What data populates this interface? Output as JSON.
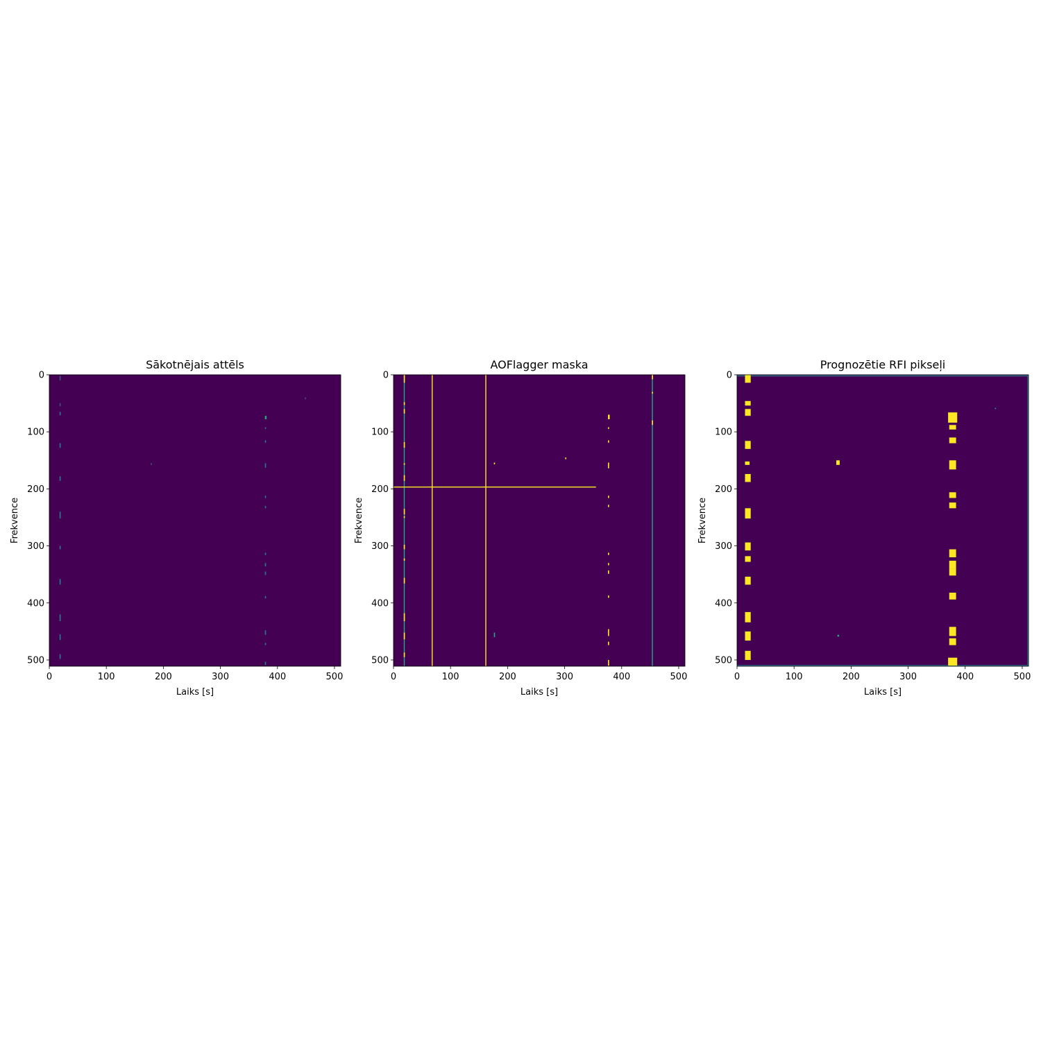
{
  "colors": {
    "background": "#440154",
    "low": "#2a788e",
    "mid": "#22a884",
    "high": "#fde725"
  },
  "chart_data": [
    {
      "type": "heatmap",
      "title": "Sākotnējais attēls",
      "xlabel": "Laiks [s]",
      "ylabel": "Frekvence",
      "xlim": [
        0,
        511
      ],
      "ylim": [
        511,
        0
      ],
      "xticks": [
        "0",
        "100",
        "200",
        "300",
        "400",
        "500"
      ],
      "yticks": [
        "0",
        "100",
        "200",
        "300",
        "400",
        "500"
      ],
      "grid": false,
      "vlines": [],
      "hlines": [],
      "blobs": [
        {
          "x": 18,
          "y": 2,
          "w": 2,
          "h": 8,
          "v": 0.25
        },
        {
          "x": 18,
          "y": 50,
          "w": 2,
          "h": 5,
          "v": 0.25
        },
        {
          "x": 18,
          "y": 65,
          "w": 2,
          "h": 6,
          "v": 0.3
        },
        {
          "x": 18,
          "y": 120,
          "w": 2,
          "h": 8,
          "v": 0.3
        },
        {
          "x": 18,
          "y": 178,
          "w": 2,
          "h": 8,
          "v": 0.3
        },
        {
          "x": 18,
          "y": 240,
          "w": 2,
          "h": 12,
          "v": 0.3
        },
        {
          "x": 18,
          "y": 300,
          "w": 2,
          "h": 6,
          "v": 0.3
        },
        {
          "x": 18,
          "y": 358,
          "w": 2,
          "h": 10,
          "v": 0.3
        },
        {
          "x": 18,
          "y": 420,
          "w": 2,
          "h": 12,
          "v": 0.3
        },
        {
          "x": 18,
          "y": 455,
          "w": 2,
          "h": 10,
          "v": 0.3
        },
        {
          "x": 18,
          "y": 490,
          "w": 2,
          "h": 8,
          "v": 0.3
        },
        {
          "x": 378,
          "y": 72,
          "w": 3,
          "h": 6,
          "v": 0.55
        },
        {
          "x": 378,
          "y": 92,
          "w": 2,
          "h": 3,
          "v": 0.4
        },
        {
          "x": 378,
          "y": 115,
          "w": 2,
          "h": 4,
          "v": 0.4
        },
        {
          "x": 378,
          "y": 155,
          "w": 2,
          "h": 8,
          "v": 0.45
        },
        {
          "x": 378,
          "y": 212,
          "w": 2,
          "h": 4,
          "v": 0.4
        },
        {
          "x": 378,
          "y": 230,
          "w": 2,
          "h": 4,
          "v": 0.4
        },
        {
          "x": 378,
          "y": 312,
          "w": 2,
          "h": 4,
          "v": 0.4
        },
        {
          "x": 378,
          "y": 330,
          "w": 2,
          "h": 6,
          "v": 0.45
        },
        {
          "x": 378,
          "y": 345,
          "w": 2,
          "h": 6,
          "v": 0.45
        },
        {
          "x": 378,
          "y": 388,
          "w": 2,
          "h": 4,
          "v": 0.4
        },
        {
          "x": 378,
          "y": 448,
          "w": 2,
          "h": 8,
          "v": 0.45
        },
        {
          "x": 378,
          "y": 470,
          "w": 2,
          "h": 4,
          "v": 0.4
        },
        {
          "x": 378,
          "y": 503,
          "w": 2,
          "h": 6,
          "v": 0.45
        },
        {
          "x": 178,
          "y": 155,
          "w": 2,
          "h": 3,
          "v": 0.2
        },
        {
          "x": 448,
          "y": 40,
          "w": 2,
          "h": 3,
          "v": 0.2
        }
      ]
    },
    {
      "type": "heatmap",
      "title": "AOFlagger maska",
      "xlabel": "Laiks [s]",
      "ylabel": "Frekvence",
      "xlim": [
        0,
        511
      ],
      "ylim": [
        511,
        0
      ],
      "xticks": [
        "0",
        "100",
        "200",
        "300",
        "400",
        "500"
      ],
      "yticks": [
        "0",
        "100",
        "200",
        "300",
        "400",
        "500"
      ],
      "grid": false,
      "vlines": [
        {
          "x": 18,
          "y0": 0,
          "y1": 511,
          "v": 0.55
        },
        {
          "x": 67,
          "y0": 0,
          "y1": 511,
          "v": 1
        },
        {
          "x": 161,
          "y0": 0,
          "y1": 511,
          "v": 1
        },
        {
          "x": 453,
          "y0": 0,
          "y1": 511,
          "v": 0.55
        }
      ],
      "hlines": [
        {
          "y": 196,
          "x0": 0,
          "x1": 355,
          "v": 1
        }
      ],
      "blobs": [
        {
          "x": 18,
          "y": 0,
          "w": 2,
          "h": 14,
          "v": 1
        },
        {
          "x": 18,
          "y": 48,
          "w": 2,
          "h": 5,
          "v": 1
        },
        {
          "x": 18,
          "y": 60,
          "w": 2,
          "h": 8,
          "v": 1
        },
        {
          "x": 18,
          "y": 118,
          "w": 2,
          "h": 10,
          "v": 1
        },
        {
          "x": 18,
          "y": 155,
          "w": 2,
          "h": 3,
          "v": 1
        },
        {
          "x": 18,
          "y": 176,
          "w": 2,
          "h": 10,
          "v": 1
        },
        {
          "x": 18,
          "y": 235,
          "w": 2,
          "h": 10,
          "v": 1
        },
        {
          "x": 18,
          "y": 248,
          "w": 2,
          "h": 3,
          "v": 1
        },
        {
          "x": 18,
          "y": 298,
          "w": 2,
          "h": 8,
          "v": 1
        },
        {
          "x": 18,
          "y": 322,
          "w": 2,
          "h": 4,
          "v": 1
        },
        {
          "x": 18,
          "y": 356,
          "w": 2,
          "h": 10,
          "v": 1
        },
        {
          "x": 18,
          "y": 418,
          "w": 2,
          "h": 14,
          "v": 1
        },
        {
          "x": 18,
          "y": 452,
          "w": 2,
          "h": 12,
          "v": 1
        },
        {
          "x": 18,
          "y": 487,
          "w": 2,
          "h": 8,
          "v": 1
        },
        {
          "x": 453,
          "y": 0,
          "w": 2,
          "h": 8,
          "v": 1
        },
        {
          "x": 453,
          "y": 80,
          "w": 2,
          "h": 8,
          "v": 1
        },
        {
          "x": 453,
          "y": 30,
          "w": 2,
          "h": 3,
          "v": 0.9
        },
        {
          "x": 376,
          "y": 70,
          "w": 3,
          "h": 8,
          "v": 1
        },
        {
          "x": 376,
          "y": 92,
          "w": 2,
          "h": 3,
          "v": 1
        },
        {
          "x": 376,
          "y": 115,
          "w": 2,
          "h": 4,
          "v": 1
        },
        {
          "x": 376,
          "y": 154,
          "w": 2,
          "h": 10,
          "v": 1
        },
        {
          "x": 376,
          "y": 212,
          "w": 2,
          "h": 4,
          "v": 1
        },
        {
          "x": 376,
          "y": 228,
          "w": 2,
          "h": 4,
          "v": 1
        },
        {
          "x": 376,
          "y": 312,
          "w": 2,
          "h": 4,
          "v": 1
        },
        {
          "x": 376,
          "y": 330,
          "w": 2,
          "h": 4,
          "v": 1
        },
        {
          "x": 376,
          "y": 343,
          "w": 2,
          "h": 6,
          "v": 1
        },
        {
          "x": 376,
          "y": 387,
          "w": 2,
          "h": 4,
          "v": 1
        },
        {
          "x": 376,
          "y": 446,
          "w": 2,
          "h": 12,
          "v": 1
        },
        {
          "x": 376,
          "y": 468,
          "w": 2,
          "h": 6,
          "v": 1
        },
        {
          "x": 376,
          "y": 500,
          "w": 2,
          "h": 10,
          "v": 1
        },
        {
          "x": 176,
          "y": 452,
          "w": 2,
          "h": 8,
          "v": 0.7
        },
        {
          "x": 176,
          "y": 154,
          "w": 2,
          "h": 3,
          "v": 0.8
        },
        {
          "x": 301,
          "y": 145,
          "w": 2,
          "h": 3,
          "v": 0.8
        }
      ]
    },
    {
      "type": "heatmap",
      "title": "Prognozētie RFI pikseļi",
      "xlabel": "Laiks [s]",
      "ylabel": "Frekvence",
      "xlim": [
        0,
        511
      ],
      "ylim": [
        511,
        0
      ],
      "xticks": [
        "0",
        "100",
        "200",
        "300",
        "400",
        "500"
      ],
      "yticks": [
        "0",
        "100",
        "200",
        "300",
        "400",
        "500"
      ],
      "grid": false,
      "vlines": [
        {
          "x": 509,
          "y0": 0,
          "y1": 511,
          "v": 0.45
        }
      ],
      "hlines": [
        {
          "y": 1,
          "x0": 0,
          "x1": 511,
          "v": 0.35
        },
        {
          "y": 509,
          "x0": 0,
          "x1": 511,
          "v": 0.35
        }
      ],
      "blobs": [
        {
          "x": 14,
          "y": 0,
          "w": 10,
          "h": 14,
          "v": 0.9
        },
        {
          "x": 14,
          "y": 46,
          "w": 10,
          "h": 8,
          "v": 0.9
        },
        {
          "x": 14,
          "y": 60,
          "w": 10,
          "h": 12,
          "v": 0.9
        },
        {
          "x": 14,
          "y": 116,
          "w": 10,
          "h": 14,
          "v": 0.9
        },
        {
          "x": 14,
          "y": 152,
          "w": 8,
          "h": 6,
          "v": 0.8
        },
        {
          "x": 14,
          "y": 174,
          "w": 10,
          "h": 14,
          "v": 0.9
        },
        {
          "x": 14,
          "y": 234,
          "w": 10,
          "h": 18,
          "v": 0.9
        },
        {
          "x": 14,
          "y": 294,
          "w": 10,
          "h": 14,
          "v": 0.9
        },
        {
          "x": 14,
          "y": 318,
          "w": 10,
          "h": 10,
          "v": 0.9
        },
        {
          "x": 14,
          "y": 354,
          "w": 10,
          "h": 14,
          "v": 0.9
        },
        {
          "x": 14,
          "y": 416,
          "w": 10,
          "h": 18,
          "v": 0.9
        },
        {
          "x": 14,
          "y": 450,
          "w": 10,
          "h": 16,
          "v": 0.9
        },
        {
          "x": 14,
          "y": 484,
          "w": 10,
          "h": 16,
          "v": 0.9
        },
        {
          "x": 370,
          "y": 66,
          "w": 16,
          "h": 18,
          "v": 0.9
        },
        {
          "x": 372,
          "y": 88,
          "w": 12,
          "h": 8,
          "v": 0.9
        },
        {
          "x": 372,
          "y": 110,
          "w": 12,
          "h": 10,
          "v": 0.9
        },
        {
          "x": 372,
          "y": 150,
          "w": 12,
          "h": 16,
          "v": 0.9
        },
        {
          "x": 372,
          "y": 206,
          "w": 12,
          "h": 10,
          "v": 0.9
        },
        {
          "x": 372,
          "y": 224,
          "w": 12,
          "h": 10,
          "v": 0.9
        },
        {
          "x": 372,
          "y": 306,
          "w": 12,
          "h": 14,
          "v": 0.9
        },
        {
          "x": 372,
          "y": 326,
          "w": 12,
          "h": 14,
          "v": 0.9
        },
        {
          "x": 372,
          "y": 340,
          "w": 12,
          "h": 12,
          "v": 0.9
        },
        {
          "x": 372,
          "y": 382,
          "w": 12,
          "h": 12,
          "v": 0.9
        },
        {
          "x": 372,
          "y": 442,
          "w": 12,
          "h": 16,
          "v": 0.9
        },
        {
          "x": 372,
          "y": 462,
          "w": 12,
          "h": 12,
          "v": 0.9
        },
        {
          "x": 370,
          "y": 496,
          "w": 16,
          "h": 14,
          "v": 0.9
        },
        {
          "x": 174,
          "y": 150,
          "w": 6,
          "h": 8,
          "v": 0.85
        },
        {
          "x": 176,
          "y": 456,
          "w": 3,
          "h": 3,
          "v": 0.6
        },
        {
          "x": 452,
          "y": 58,
          "w": 2,
          "h": 2,
          "v": 0.6
        }
      ]
    }
  ]
}
